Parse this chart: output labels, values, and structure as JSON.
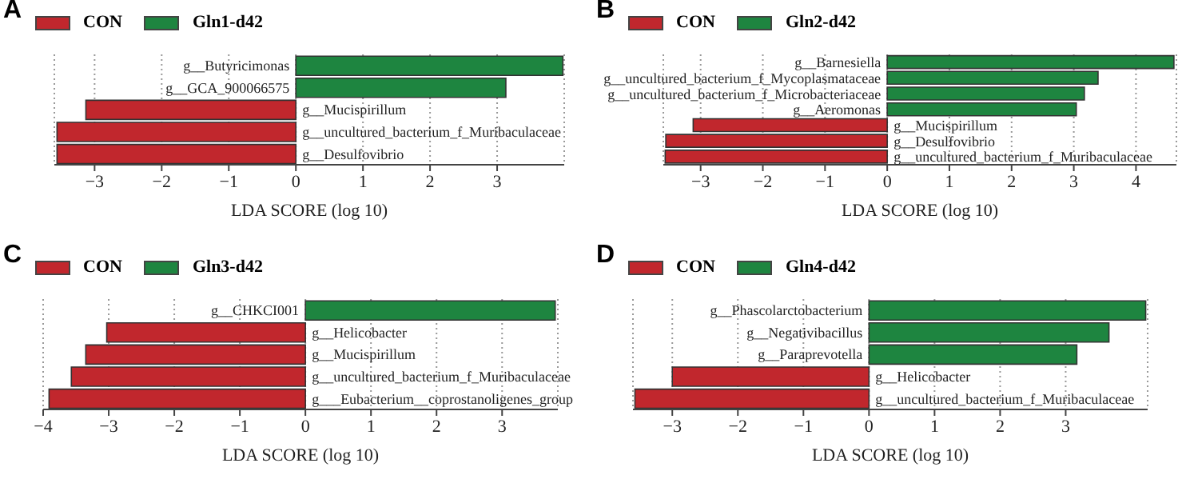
{
  "chart_data": [
    {
      "type": "bar",
      "title": "A",
      "orientation": "horizontal",
      "stacked": true,
      "categories": [
        "g__Butyricimonas",
        "g__GCA_900066575",
        "g__Mucispirillum",
        "g__uncultured_bacterium_f_Muribaculaceae",
        "g__Desulfovibrio"
      ],
      "series": [
        {
          "name": "CON",
          "color": "#c1272d",
          "values": [
            null,
            null,
            -3.13,
            -3.56,
            -3.56
          ]
        },
        {
          "name": "Gln1-d42",
          "color": "#1e8540",
          "values": [
            3.98,
            3.13,
            null,
            null,
            null
          ]
        }
      ],
      "xlim": [
        -3.6,
        4
      ],
      "xticks": [
        -3,
        -2,
        -1,
        0,
        1,
        2,
        3
      ],
      "xlabel": "LDA SCORE (log 10)",
      "grid": "x",
      "legend": "top left"
    },
    {
      "type": "bar",
      "title": "B",
      "orientation": "horizontal",
      "stacked": true,
      "categories": [
        "g__Barnesiella",
        "g__uncultured_bacterium_f_Mycoplasmataceae",
        "g__uncultured_bacterium_f_Microbacteriaceae",
        "g__Aeromonas",
        "g__Mucispirillum",
        "g__Desulfovibrio",
        "g__uncultured_bacterium_f_Muribaculaceae"
      ],
      "series": [
        {
          "name": "CON",
          "color": "#c1272d",
          "values": [
            null,
            null,
            null,
            null,
            -3.12,
            -3.56,
            -3.57
          ]
        },
        {
          "name": "Gln2-d42",
          "color": "#1e8540",
          "values": [
            4.61,
            3.39,
            3.17,
            3.04,
            null,
            null,
            null
          ]
        }
      ],
      "xlim": [
        -3.6,
        4.65
      ],
      "xticks": [
        -3,
        -2,
        -1,
        0,
        1,
        2,
        3,
        4
      ],
      "xlabel": "LDA SCORE (log 10)",
      "grid": "x",
      "legend": "top left"
    },
    {
      "type": "bar",
      "title": "C",
      "orientation": "horizontal",
      "stacked": true,
      "categories": [
        "g__CHKCI001",
        "g__Helicobacter",
        "g__Mucispirillum",
        "g__uncultured_bacterium_f_Muribaculaceae",
        "g___Eubacterium__coprostanoligenes_group"
      ],
      "series": [
        {
          "name": "CON",
          "color": "#c1272d",
          "values": [
            null,
            -3.03,
            -3.35,
            -3.57,
            -3.91
          ]
        },
        {
          "name": "Gln3-d42",
          "color": "#1e8540",
          "values": [
            3.81,
            null,
            null,
            null,
            null
          ]
        }
      ],
      "xlim": [
        -4,
        3.85
      ],
      "xticks": [
        -4,
        -3,
        -2,
        -1,
        0,
        1,
        2,
        3
      ],
      "xlabel": "LDA SCORE (log 10)",
      "grid": "x",
      "legend": "top left"
    },
    {
      "type": "bar",
      "title": "D",
      "orientation": "horizontal",
      "stacked": true,
      "categories": [
        "g__Phascolarctobacterium",
        "g__Negativibacillus",
        "g__Paraprevotella",
        "g__Helicobacter",
        "g__uncultured_bacterium_f_Muribaculaceae"
      ],
      "series": [
        {
          "name": "CON",
          "color": "#c1272d",
          "values": [
            null,
            null,
            null,
            -3.0,
            -3.57
          ]
        },
        {
          "name": "Gln4-d42",
          "color": "#1e8540",
          "values": [
            4.22,
            3.66,
            3.17,
            null,
            null
          ]
        }
      ],
      "xlim": [
        -3.6,
        4.25
      ],
      "xticks": [
        -3,
        -2,
        -1,
        0,
        1,
        2,
        3
      ],
      "xlabel": "LDA SCORE (log 10)",
      "grid": "x",
      "legend": "top left"
    }
  ]
}
